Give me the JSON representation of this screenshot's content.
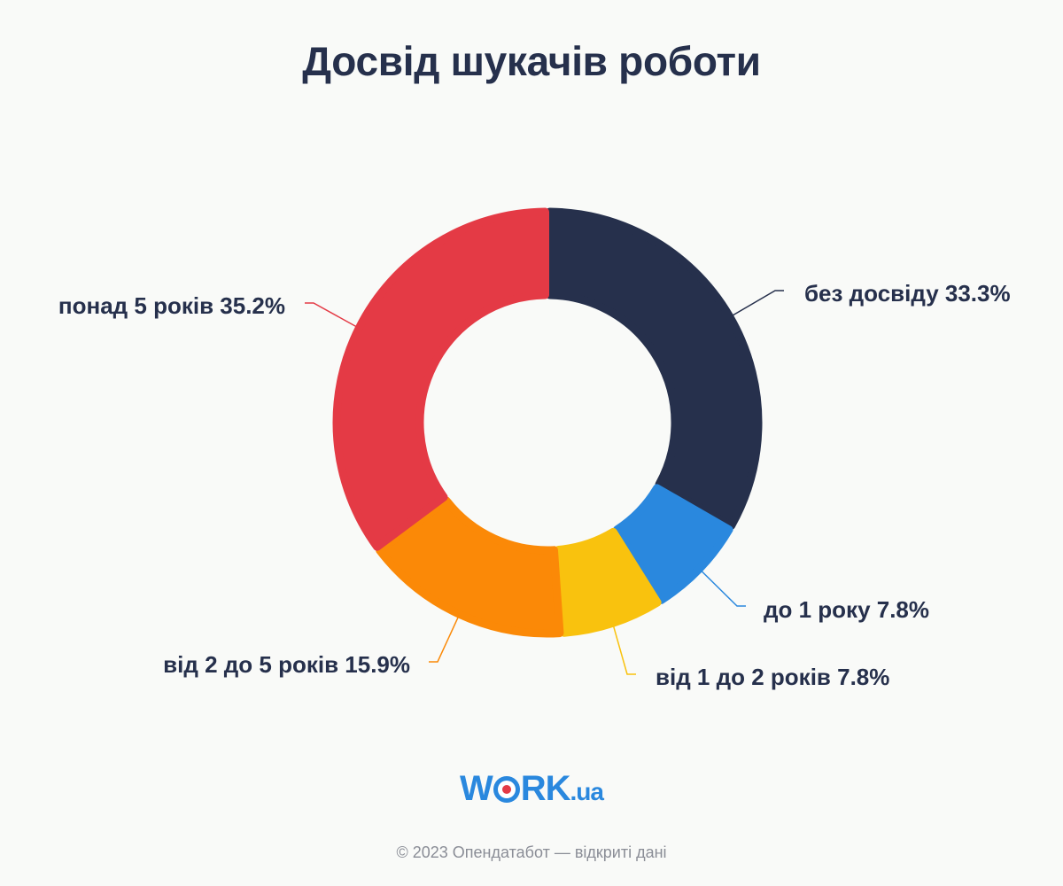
{
  "chart_data": {
    "type": "pie",
    "title": "Досвід шукачів роботи",
    "labels": [
      "без досвіду 33.3%",
      "до 1 року 7.8%",
      "від 1 до 2 років 7.8%",
      "від 2 до 5 років 15.9%",
      "понад 5 років 35.2%"
    ],
    "values": [
      33.3,
      7.8,
      7.8,
      15.9,
      35.2
    ],
    "colors": [
      "#26304c",
      "#2a88de",
      "#f9c20e",
      "#fb8907",
      "#e43a45"
    ],
    "donut": true
  },
  "logo": {
    "word_start": "W",
    "word_end": "RK",
    "suffix": ".ua"
  },
  "footer": "© 2023 Опендатабот — відкриті дані"
}
